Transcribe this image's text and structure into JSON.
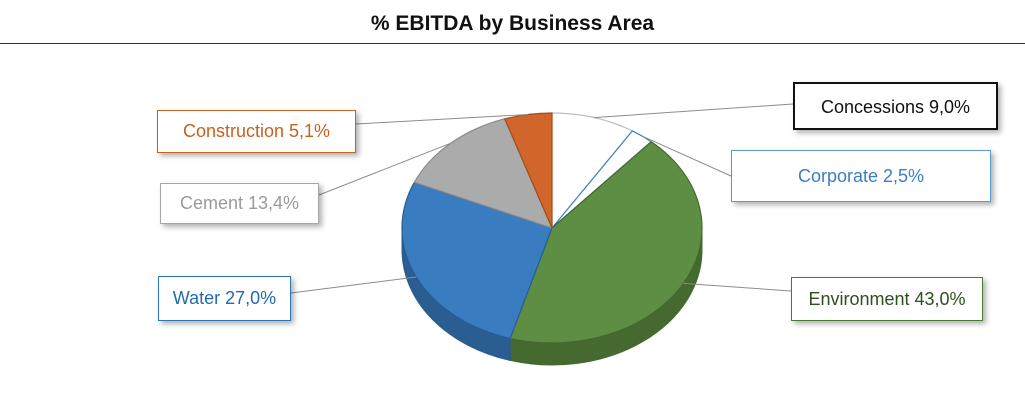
{
  "chart_data": {
    "type": "pie",
    "title": "% EBITDA by Business Area",
    "series": [
      {
        "name": "Concessions",
        "value": 9.0,
        "label": "Concessions 9,0%",
        "color": "#ffffff",
        "side": "#e9e9e9",
        "edge": "#bfbfbf",
        "text_color": "#111111",
        "border": "#111111"
      },
      {
        "name": "Corporate",
        "value": 2.5,
        "label": "Corporate 2,5%",
        "color": "#ffffff",
        "side": "#e6eff8",
        "edge": "#3c7fc0",
        "text_color": "#3c7fc0",
        "border": "#5b9bd5"
      },
      {
        "name": "Environment",
        "value": 43.0,
        "label": "Environment 43,0%",
        "color": "#5e8e44",
        "side": "#45692f",
        "edge": "#45692f",
        "text_color": "#2e4f1e",
        "border": "#4a7a34"
      },
      {
        "name": "Water",
        "value": 27.0,
        "label": "Water 27,0%",
        "color": "#3a7cc0",
        "side": "#2a5d92",
        "edge": "#2a5d92",
        "text_color": "#1f6bb0",
        "border": "#2e75b6"
      },
      {
        "name": "Cement",
        "value": 13.4,
        "label": "Cement 13,4%",
        "color": "#ababab",
        "side": "#8a8a8a",
        "edge": "#8a8a8a",
        "text_color": "#9a9a9a",
        "border": "#a6a6a6"
      },
      {
        "name": "Construction",
        "value": 5.1,
        "label": "Construction 5,1%",
        "color": "#d0662a",
        "side": "#a24d1d",
        "edge": "#a24d1d",
        "text_color": "#c5621f",
        "border": "#c5621f"
      }
    ],
    "legend": "none",
    "data_labels": "callout boxes with leader lines"
  }
}
